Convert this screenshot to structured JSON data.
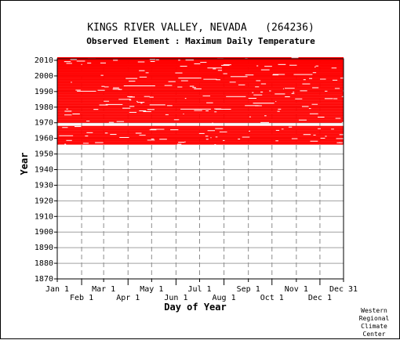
{
  "chart_data": {
    "type": "heatmap",
    "title": "KINGS RIVER VALLEY, NEVADA   (264236)",
    "subtitle": "Observed Element : Maximum Daily Temperature",
    "xlabel": "Day of Year",
    "ylabel": "Year",
    "x_ticks_top_row": [
      "Jan 1",
      "Mar 1",
      "May 1",
      "Jul 1",
      "Sep 1",
      "Nov 1",
      "Dec 31"
    ],
    "x_ticks_bottom_row": [
      "Feb 1",
      "Apr 1",
      "Jun 1",
      "Aug 1",
      "Oct 1",
      "Dec 1"
    ],
    "x_tick_days_top": [
      1,
      60,
      121,
      182,
      244,
      305,
      365
    ],
    "x_tick_days_bottom": [
      32,
      91,
      152,
      213,
      274,
      335
    ],
    "y_ticks": [
      1870,
      1880,
      1890,
      1900,
      1910,
      1920,
      1930,
      1940,
      1950,
      1960,
      1970,
      1980,
      1990,
      2000,
      2010
    ],
    "xlim": [
      1,
      365
    ],
    "ylim": [
      1870,
      2011
    ],
    "data_years": [
      1956,
      2011
    ],
    "gap_years": [
      1968,
      1970
    ],
    "data_color": "#ff0000",
    "grid": true,
    "credit": [
      "Western",
      "Regional",
      "Climate",
      "Center"
    ]
  }
}
